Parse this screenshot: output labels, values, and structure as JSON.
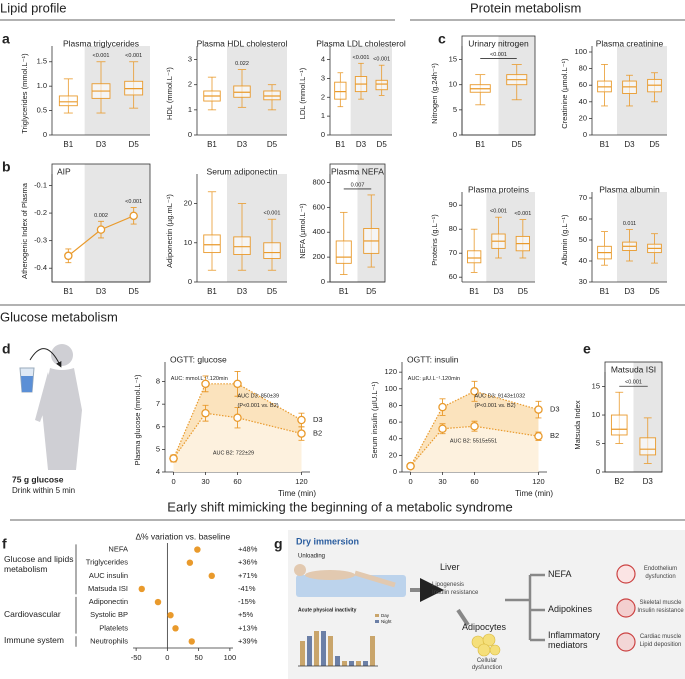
{
  "color": "#e99a2c",
  "shade_color": "#e6e6e6",
  "sections": [
    "Lipid profile",
    "Protein metabolism",
    "Glucose metabolism",
    "Early shift mimicking the beginning of a metabolic syndrome"
  ],
  "panel_letters": [
    "a",
    "b",
    "c",
    "d",
    "e",
    "f",
    "g"
  ],
  "panel_d": {
    "dose": "75 g glucose",
    "instruction": "Drink within 5 min"
  },
  "panel_g": {
    "title": "Dry immersion",
    "unloading": "Unloading",
    "liver": "Liver",
    "liver_effects": [
      "Lipogenesis",
      "Insulin resistance"
    ],
    "adipocytes": "Adipocytes",
    "adipocyte_effect": "Cellular dysfunction",
    "inset_title": "Acute physical inactivity",
    "inset_legend": [
      "Day",
      "Night"
    ],
    "inset_values": [
      5,
      6,
      7,
      7,
      6,
      2,
      1,
      1,
      1,
      1,
      6
    ],
    "mediators": [
      "NEFA",
      "Adipokines",
      "Inflammatory mediators"
    ],
    "targets": [
      [
        "Endothelium",
        "dysfunction"
      ],
      [
        "Skeletal muscle",
        "Insulin resistance"
      ],
      [
        "Cardiac muscle",
        "Lipid deposition"
      ]
    ]
  },
  "chart_data": [
    {
      "type": "box",
      "title": "Plasma triglycerides",
      "ylabel": "Triglycerides (mmol.L⁻¹)",
      "categories": [
        "B1",
        "D3",
        "D5"
      ],
      "boxes": [
        {
          "min": 0.45,
          "q1": 0.6,
          "median": 0.68,
          "q3": 0.8,
          "max": 1.15
        },
        {
          "min": 0.45,
          "q1": 0.75,
          "median": 0.9,
          "q3": 1.05,
          "max": 1.5
        },
        {
          "min": 0.55,
          "q1": 0.82,
          "median": 0.95,
          "q3": 1.1,
          "max": 1.5
        }
      ],
      "ylim": [
        0,
        1.7
      ],
      "yticks": [
        0,
        0.5,
        {
          "value": 1,
          "label": "1.0"
        },
        1.5
      ],
      "shaded": true,
      "annotations": [
        {
          "text": "<0.001",
          "at": "D3"
        },
        {
          "text": "<0.001",
          "at": "D5"
        }
      ]
    },
    {
      "type": "box",
      "title": "Plasma HDL cholesterol",
      "ylabel": "HDL (mmol.L⁻¹)",
      "categories": [
        "B1",
        "D3",
        "D5"
      ],
      "boxes": [
        {
          "min": 1.0,
          "q1": 1.35,
          "median": 1.55,
          "q3": 1.75,
          "max": 2.3
        },
        {
          "min": 1.1,
          "q1": 1.5,
          "median": 1.7,
          "q3": 1.95,
          "max": 2.6
        },
        {
          "min": 1.0,
          "q1": 1.4,
          "median": 1.55,
          "q3": 1.75,
          "max": 2.0
        }
      ],
      "ylim": [
        0,
        3.3
      ],
      "yticks": [
        0,
        1,
        2,
        3
      ],
      "shaded": true,
      "annotations": [
        {
          "text": "0.022",
          "at": "D3"
        }
      ]
    },
    {
      "type": "box",
      "title": "Plasma LDL cholesterol",
      "ylabel": "LDL (mmol.L⁻¹)",
      "categories": [
        "B1",
        "D3",
        "D5"
      ],
      "boxes": [
        {
          "min": 1.5,
          "q1": 1.9,
          "median": 2.3,
          "q3": 2.8,
          "max": 3.3
        },
        {
          "min": 1.9,
          "q1": 2.3,
          "median": 2.7,
          "q3": 3.1,
          "max": 3.8
        },
        {
          "min": 2.1,
          "q1": 2.4,
          "median": 2.7,
          "q3": 2.9,
          "max": 3.7
        }
      ],
      "ylim": [
        0,
        4.4
      ],
      "yticks": [
        0,
        1,
        2,
        3,
        4
      ],
      "shaded": true,
      "annotations": [
        {
          "text": "<0.001",
          "at": "D3"
        },
        {
          "text": "<0.001",
          "at": "D5"
        }
      ]
    },
    {
      "type": "line",
      "title": "AIP",
      "ylabel": "Atherogenic Index of Plasma",
      "categories": [
        "B1",
        "D3",
        "D5"
      ],
      "values": [
        -0.355,
        -0.26,
        -0.21
      ],
      "errors": [
        0.025,
        0.03,
        0.03
      ],
      "ylim": [
        -0.45,
        -0.08
      ],
      "yticks": [
        -0.4,
        -0.3,
        -0.2,
        -0.1
      ],
      "shaded": true,
      "frame": true,
      "annotations": [
        {
          "text": "0.002",
          "at": "D3"
        },
        {
          "text": "<0.001",
          "at": "D5"
        }
      ]
    },
    {
      "type": "box",
      "title": "Serum adiponectin",
      "ylabel": "Adiponectin (µg.mL⁻¹)",
      "categories": [
        "B1",
        "D3",
        "D5"
      ],
      "boxes": [
        {
          "min": 3,
          "q1": 7.5,
          "median": 9.5,
          "q3": 12,
          "max": 23
        },
        {
          "min": 3,
          "q1": 7,
          "median": 9,
          "q3": 11.5,
          "max": 20
        },
        {
          "min": 3,
          "q1": 6,
          "median": 7.5,
          "q3": 10,
          "max": 16
        }
      ],
      "ylim": [
        0,
        26
      ],
      "yticks": [
        0,
        10,
        20
      ],
      "shaded": true,
      "annotations": [
        {
          "text": "<0.001",
          "at": "D5"
        }
      ]
    },
    {
      "type": "box",
      "title": "Plasma NEFA",
      "ylabel": "NEFA (µmol.L⁻¹)",
      "categories": [
        "B1",
        "D5"
      ],
      "boxes": [
        {
          "min": 60,
          "q1": 150,
          "median": 200,
          "q3": 330,
          "max": 560
        },
        {
          "min": 120,
          "q1": 230,
          "median": 330,
          "q3": 430,
          "max": 700
        }
      ],
      "ylim": [
        0,
        820
      ],
      "yticks": [
        0,
        200,
        400,
        600,
        800
      ],
      "shaded": true,
      "frame": true,
      "annotations": [
        {
          "text": "0.007",
          "from": "B1",
          "to": "D5"
        }
      ]
    },
    {
      "type": "box",
      "title": "Urinary nitrogen",
      "ylabel": "Nitrogen (g.24h⁻¹)",
      "categories": [
        "B1",
        "D5"
      ],
      "boxes": [
        {
          "min": 6,
          "q1": 8.5,
          "median": 9.2,
          "q3": 10,
          "max": 12
        },
        {
          "min": 7,
          "q1": 10,
          "median": 11,
          "q3": 12,
          "max": 14
        }
      ],
      "ylim": [
        0,
        16.5
      ],
      "yticks": [
        0,
        5,
        10,
        15
      ],
      "shaded": true,
      "frame": true,
      "annotations": [
        {
          "text": "<0.001",
          "from": "B1",
          "to": "D5"
        }
      ]
    },
    {
      "type": "box",
      "title": "Plasma creatinine",
      "ylabel": "Creatinine (µmol.L⁻¹)",
      "categories": [
        "B1",
        "D3",
        "D5"
      ],
      "boxes": [
        {
          "min": 35,
          "q1": 52,
          "median": 58,
          "q3": 65,
          "max": 85
        },
        {
          "min": 35,
          "q1": 50,
          "median": 58,
          "q3": 65,
          "max": 72
        },
        {
          "min": 40,
          "q1": 52,
          "median": 60,
          "q3": 67,
          "max": 75
        }
      ],
      "ylim": [
        0,
        100
      ],
      "yticks": [
        0,
        20,
        40,
        60,
        80,
        100
      ],
      "shaded": true,
      "annotations": []
    },
    {
      "type": "box",
      "title": "Plasma proteins",
      "ylabel": "Proteins (g.L⁻¹)",
      "categories": [
        "B1",
        "D3",
        "D5"
      ],
      "boxes": [
        {
          "min": 62,
          "q1": 66,
          "median": 68,
          "q3": 71,
          "max": 80
        },
        {
          "min": 68,
          "q1": 72,
          "median": 75,
          "q3": 78,
          "max": 85
        },
        {
          "min": 68,
          "q1": 71,
          "median": 74,
          "q3": 77,
          "max": 84
        }
      ],
      "ylim": [
        58,
        93
      ],
      "yticks": [
        60,
        70,
        80,
        90
      ],
      "shaded": true,
      "annotations": [
        {
          "text": "<0.001",
          "at": "D3"
        },
        {
          "text": "<0.001",
          "at": "D5"
        }
      ]
    },
    {
      "type": "box",
      "title": "Plasma albumin",
      "ylabel": "Albumin (g.L⁻¹)",
      "categories": [
        "B1",
        "D3",
        "D5"
      ],
      "boxes": [
        {
          "min": 38,
          "q1": 41,
          "median": 44,
          "q3": 47,
          "max": 54
        },
        {
          "min": 40,
          "q1": 45,
          "median": 47,
          "q3": 49,
          "max": 55
        },
        {
          "min": 39,
          "q1": 44,
          "median": 46,
          "q3": 48,
          "max": 53
        }
      ],
      "ylim": [
        30,
        70
      ],
      "yticks": [
        30,
        40,
        50,
        60,
        70
      ],
      "shaded": true,
      "annotations": [
        {
          "text": "0.011",
          "at": "D3"
        }
      ]
    },
    {
      "type": "line",
      "title": "OGTT: glucose",
      "ylabel": "Plasma glucose (mmol.L⁻¹)",
      "xlabel": "Time (min)",
      "x": [
        0,
        30,
        60,
        120
      ],
      "xlim": [
        -8,
        128
      ],
      "xticks": [
        0,
        30,
        60,
        120
      ],
      "ylim": [
        4,
        8.6
      ],
      "yticks": [
        4,
        5,
        6,
        7,
        8
      ],
      "series": [
        {
          "name": "D3",
          "fill": "#fbe3bd",
          "values": [
            4.6,
            7.9,
            7.9,
            6.3
          ],
          "errors": [
            0.15,
            0.35,
            0.55,
            0.3
          ]
        },
        {
          "name": "B2",
          "fill": "#fdf1de",
          "values": [
            4.6,
            6.6,
            6.4,
            5.7
          ],
          "errors": [
            0.15,
            0.35,
            0.45,
            0.3
          ]
        }
      ],
      "annotations": [
        {
          "text": "AUC: mmol.L⁻¹.120min"
        },
        {
          "text": "AUC D3: 850±39"
        },
        {
          "text": "(P<0.001 vs. B2)"
        },
        {
          "text": "AUC B2: 722±29"
        }
      ]
    },
    {
      "type": "line",
      "title": "OGTT: insulin",
      "ylabel": "Serum insulin (µIU.L⁻¹)",
      "xlabel": "Time (min)",
      "x": [
        0,
        30,
        60,
        120
      ],
      "xlim": [
        -8,
        128
      ],
      "xticks": [
        0,
        30,
        60,
        120
      ],
      "ylim": [
        0,
        125
      ],
      "yticks": [
        0,
        20,
        40,
        60,
        80,
        100,
        120
      ],
      "series": [
        {
          "name": "D3",
          "fill": "#fbe3bd",
          "values": [
            7,
            78,
            97,
            75
          ],
          "errors": [
            3,
            10,
            12,
            10
          ]
        },
        {
          "name": "B2",
          "fill": "#fdf1de",
          "values": [
            7,
            52,
            55,
            43
          ],
          "errors": [
            3,
            6,
            6,
            5
          ]
        }
      ],
      "annotations": [
        {
          "text": "AUC: µIU.L⁻¹.120min"
        },
        {
          "text": "AUC D3: 9143±1032"
        },
        {
          "text": "(P<0.001 vs. B2)"
        },
        {
          "text": "AUC B2: 5515±551"
        }
      ]
    },
    {
      "type": "box",
      "title": "Matsuda ISI",
      "ylabel": "Matsuda Index",
      "categories": [
        "B2",
        "D3"
      ],
      "boxes": [
        {
          "min": 5,
          "q1": 6.5,
          "median": 7.5,
          "q3": 10,
          "max": 14
        },
        {
          "min": 1.5,
          "q1": 3,
          "median": 4,
          "q3": 6,
          "max": 9.5
        }
      ],
      "ylim": [
        0,
        16.5
      ],
      "yticks": [
        0,
        5,
        10,
        15
      ],
      "shaded": true,
      "frame": true,
      "annotations": [
        {
          "text": "<0.001",
          "from": "B2",
          "to": "D3"
        }
      ]
    },
    {
      "type": "dot",
      "title": "∆% variation vs. baseline",
      "categories": [
        "NEFA",
        "Triglycerides",
        "AUC insulin",
        "Matsuda ISI",
        "Adiponectin",
        "Systolic BP",
        "Platelets",
        "Neutrophils"
      ],
      "values": [
        48,
        36,
        71,
        -41,
        -15,
        5,
        13,
        39
      ],
      "value_labels": [
        "+48%",
        "+36%",
        "+71%",
        "-41%",
        "-15%",
        "+5%",
        "+13%",
        "+39%"
      ],
      "xlim": [
        -55,
        105
      ],
      "xticks": [
        -50,
        0,
        50,
        100
      ],
      "groups": [
        {
          "name": "Glucose and lipids metabolism",
          "from": "NEFA",
          "to": "Matsuda ISI"
        },
        {
          "name": "Cardiovascular",
          "from": "Adiponectin",
          "to": "Platelets"
        },
        {
          "name": "Immune system",
          "from": "Neutrophils",
          "to": "Neutrophils"
        }
      ]
    }
  ]
}
